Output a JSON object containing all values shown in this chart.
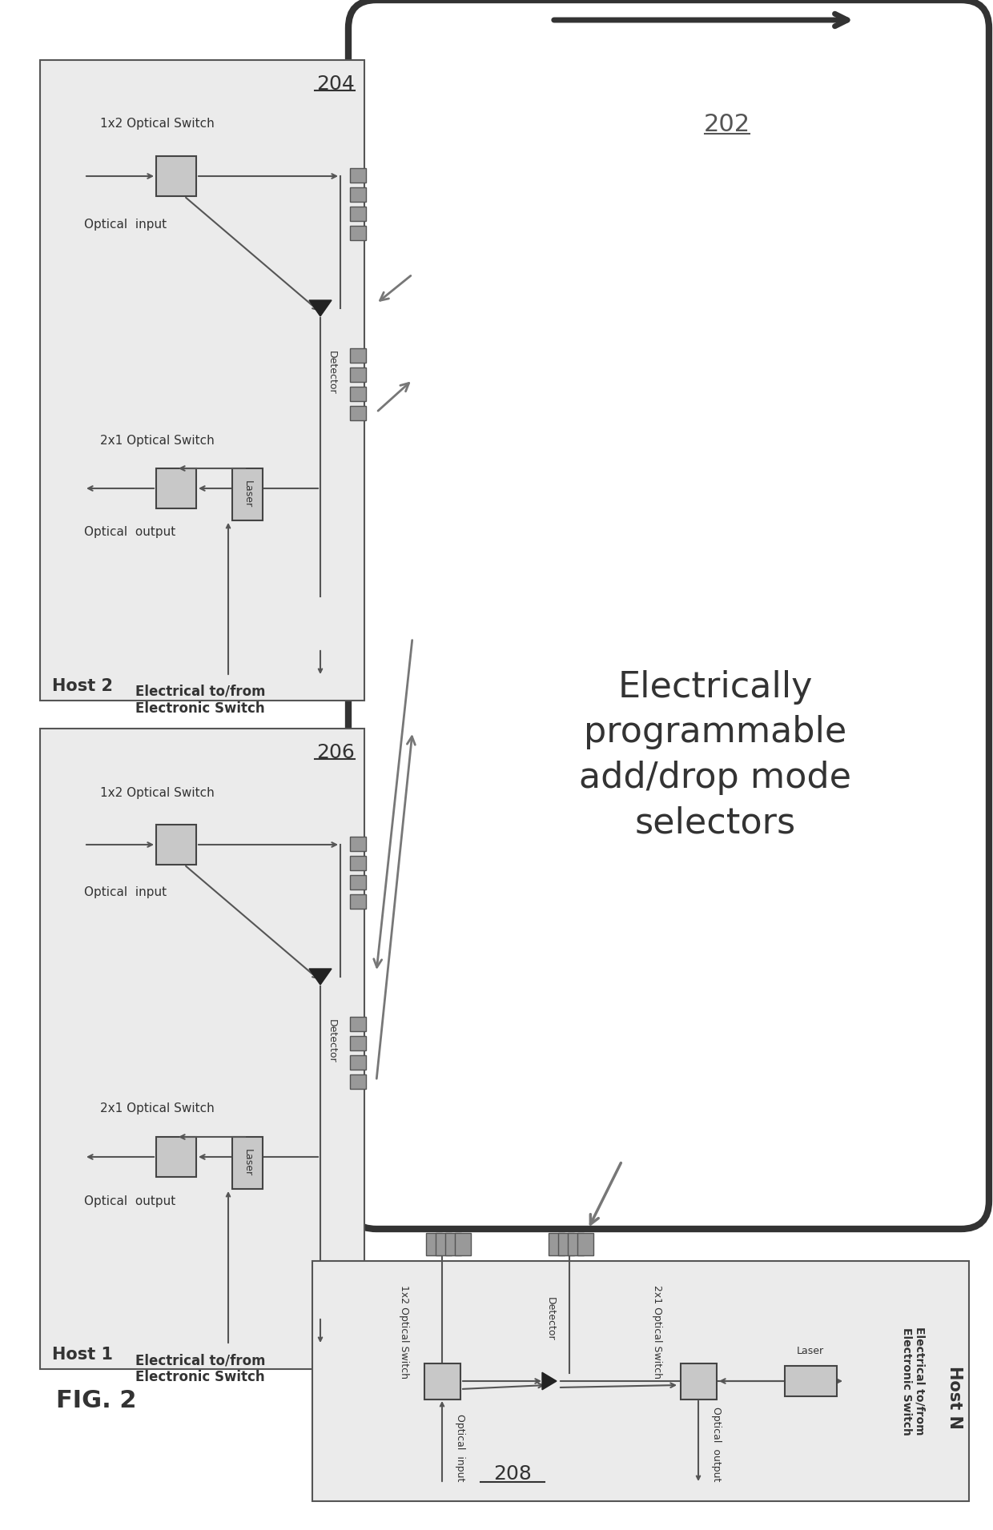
{
  "bg_color": "#ffffff",
  "title_202": "Electrically\nprogrammable\nadd/drop mode\nselectors",
  "label_202": "202",
  "label_204": "204",
  "label_206": "206",
  "label_208": "208",
  "host2_label": "Host 2",
  "host1_label": "Host 1",
  "hostN_label": "Host N",
  "fig_label": "FIG. 2",
  "elec_label": "Electrical to/from\nElectronic Switch",
  "optical_switch_1x2": "1x2 Optical Switch",
  "optical_switch_2x1": "2x1 Optical Switch",
  "optical_input": "Optical  input",
  "optical_output": "Optical  output",
  "detector_label": "Detector",
  "laser_label": "Laser"
}
